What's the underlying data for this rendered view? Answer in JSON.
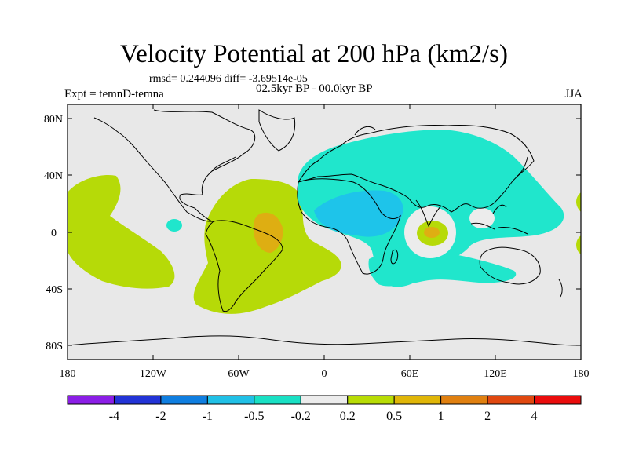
{
  "title": "Velocity Potential at 200 hPa (km2/s)",
  "stats": "rmsd= 0.244096 diff= -3.69514e-05",
  "experiment": "Expt = temnD-temna",
  "period": "02.5kyr BP - 00.0kyr BP",
  "season": "JJA",
  "lat_ticks": [
    "80N",
    "40N",
    "0",
    "40S",
    "80S"
  ],
  "lon_ticks": [
    "180",
    "120W",
    "60W",
    "0",
    "60E",
    "120E",
    "180"
  ],
  "colorbar": {
    "labels": [
      "-4",
      "-2",
      "-1",
      "-0.5",
      "-0.2",
      "0.2",
      "0.5",
      "1",
      "2",
      "4"
    ],
    "colors": [
      "#8b1ee6",
      "#2233d6",
      "#0f7ee0",
      "#20c0e6",
      "#19e0c4",
      "#ececec",
      "#b8dc05",
      "#e0b608",
      "#e08010",
      "#e04810",
      "#ea0c0c"
    ]
  },
  "colors": {
    "background": "#e8e8e8",
    "negative_light": "#20e6cc",
    "negative_medium": "#1ec4ea",
    "positive_light": "#b6da08",
    "positive_medium": "#deae12"
  }
}
